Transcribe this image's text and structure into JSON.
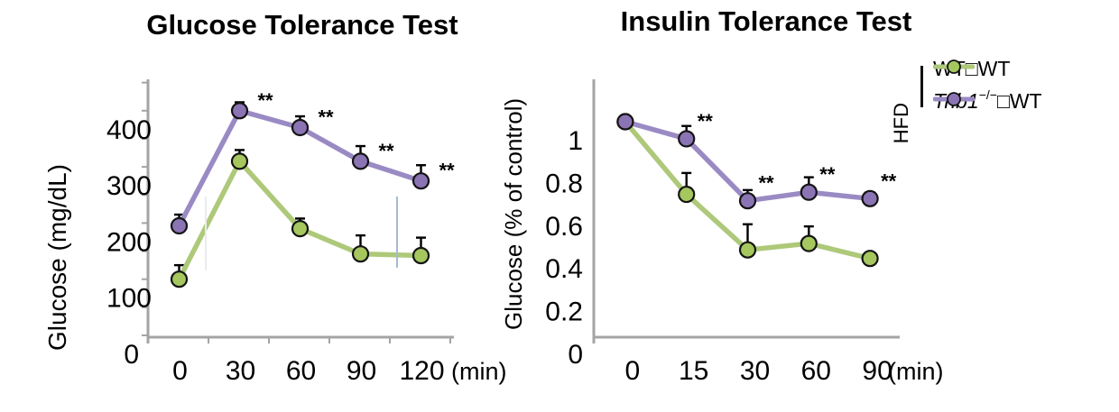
{
  "chart_data": [
    {
      "id": "gtt",
      "type": "line",
      "title": "Glucose Tolerance Test",
      "ylabel": "Glucose  (mg/dL)",
      "x_unit": "(min)",
      "xlabel": "",
      "categories": [
        "0",
        "30",
        "60",
        "90",
        "120"
      ],
      "y_axis": {
        "min": 0,
        "max": 455,
        "minor_tick_step": 50,
        "labeled_ticks": [
          {
            "v": 0,
            "label": "0",
            "dx": -14
          },
          {
            "v": 100,
            "label": "100",
            "dx": 0
          },
          {
            "v": 200,
            "label": "200",
            "dx": 0
          },
          {
            "v": 300,
            "label": "300",
            "dx": 0
          },
          {
            "v": 400,
            "label": "400",
            "dx": 0
          }
        ]
      },
      "axis_color": "#a4a4a4",
      "grid": false,
      "sig_label": "**",
      "series": [
        {
          "name": "WT□WT",
          "line_color": "#adc979",
          "marker_color": "#a5c75e",
          "marker_stroke": "#141414",
          "values": [
            100,
            310,
            190,
            145,
            142
          ],
          "err_up": [
            25,
            20,
            18,
            33,
            32
          ],
          "sig": [
            0,
            0,
            0,
            0,
            0
          ]
        },
        {
          "name": "Trib1−/−□WT",
          "line_color": "#9a8ac4",
          "marker_color": "#8b74b4",
          "marker_stroke": "#141414",
          "values": [
            195,
            400,
            370,
            310,
            275
          ],
          "err_up": [
            20,
            15,
            20,
            27,
            28
          ],
          "sig": [
            0,
            1,
            1,
            1,
            1
          ]
        }
      ]
    },
    {
      "id": "itt",
      "type": "line",
      "title": "Insulin Tolerance Test",
      "ylabel": "Glucose (% of control)",
      "x_unit": "(min)",
      "xlabel": "",
      "categories": [
        "0",
        "15",
        "30",
        "60",
        "90"
      ],
      "y_axis": {
        "min": 0,
        "max": 1.18,
        "minor_tick_step": 0,
        "labeled_ticks": [
          {
            "v": 0,
            "label": "0",
            "dx": 0
          },
          {
            "v": 0.2,
            "label": "0.2",
            "dx": 0
          },
          {
            "v": 0.4,
            "label": "0.4",
            "dx": 0
          },
          {
            "v": 0.6,
            "label": "0.6",
            "dx": 0
          },
          {
            "v": 0.8,
            "label": "0.8",
            "dx": 0
          },
          {
            "v": 1,
            "label": "1",
            "dx": 0
          }
        ]
      },
      "axis_color": "#a4a4a4",
      "grid": false,
      "sig_label": "**",
      "series": [
        {
          "name": "WT□WT",
          "line_color": "#adc979",
          "marker_color": "#a5c75e",
          "marker_stroke": "#141414",
          "values": [
            1.0,
            0.66,
            0.4,
            0.43,
            0.36
          ],
          "err_up": [
            0,
            0.1,
            0.12,
            0.08,
            0
          ],
          "sig": [
            0,
            0,
            0,
            0,
            0
          ]
        },
        {
          "name": "Trib1−/−□WT",
          "line_color": "#9a8ac4",
          "marker_color": "#8b74b4",
          "marker_stroke": "#141414",
          "values": [
            1.0,
            0.92,
            0.63,
            0.67,
            0.64
          ],
          "err_up": [
            0,
            0.06,
            0.05,
            0.07,
            0.03
          ],
          "sig": [
            0,
            1,
            1,
            1,
            1
          ]
        }
      ]
    }
  ],
  "legend": {
    "group_label": "HFD",
    "items": [
      {
        "italic": "",
        "sup": "",
        "rest": "WT□WT",
        "line_color": "#adc979",
        "marker_color": "#a5c75e"
      },
      {
        "italic": "Trib1",
        "sup": "−/−",
        "rest": "□WT",
        "line_color": "#9a8ac4",
        "marker_color": "#8b74b4"
      }
    ]
  }
}
